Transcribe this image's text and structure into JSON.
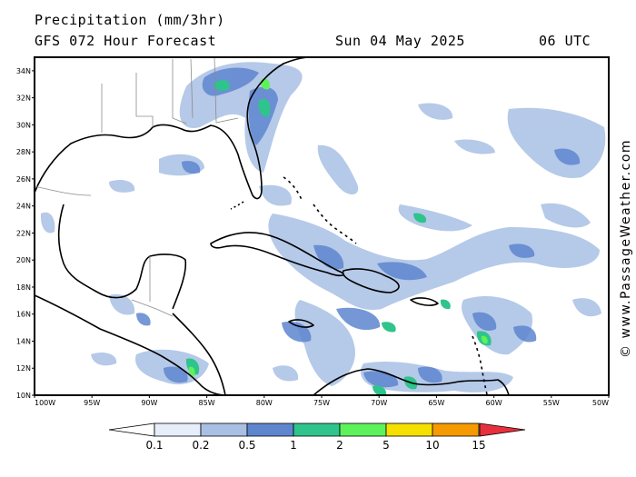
{
  "header": {
    "title": "Precipitation (mm/3hr)",
    "subtitle": "GFS 072 Hour Forecast",
    "date": "Sun 04 May 2025",
    "time": "06 UTC"
  },
  "credit": "© www.PassageWeather.com",
  "map": {
    "lon_range": [
      -100,
      -50
    ],
    "lat_range": [
      10,
      35
    ],
    "lat_ticks": [
      "34N",
      "32N",
      "30N",
      "28N",
      "26N",
      "24N",
      "22N",
      "20N",
      "18N",
      "16N",
      "14N",
      "12N",
      "10N"
    ],
    "lon_ticks": [
      "100W",
      "95W",
      "90W",
      "85W",
      "80W",
      "75W",
      "70W",
      "65W",
      "60W",
      "55W",
      "50W"
    ]
  },
  "colorbar": {
    "labels": [
      "0.1",
      "0.2",
      "0.5",
      "1",
      "2",
      "5",
      "10",
      "15"
    ],
    "colors": [
      "#ffffff",
      "#e6eef9",
      "#a9c0e4",
      "#5e86cf",
      "#2ec48c",
      "#5ef25a",
      "#f6e000",
      "#f59a00",
      "#e8303c"
    ]
  }
}
